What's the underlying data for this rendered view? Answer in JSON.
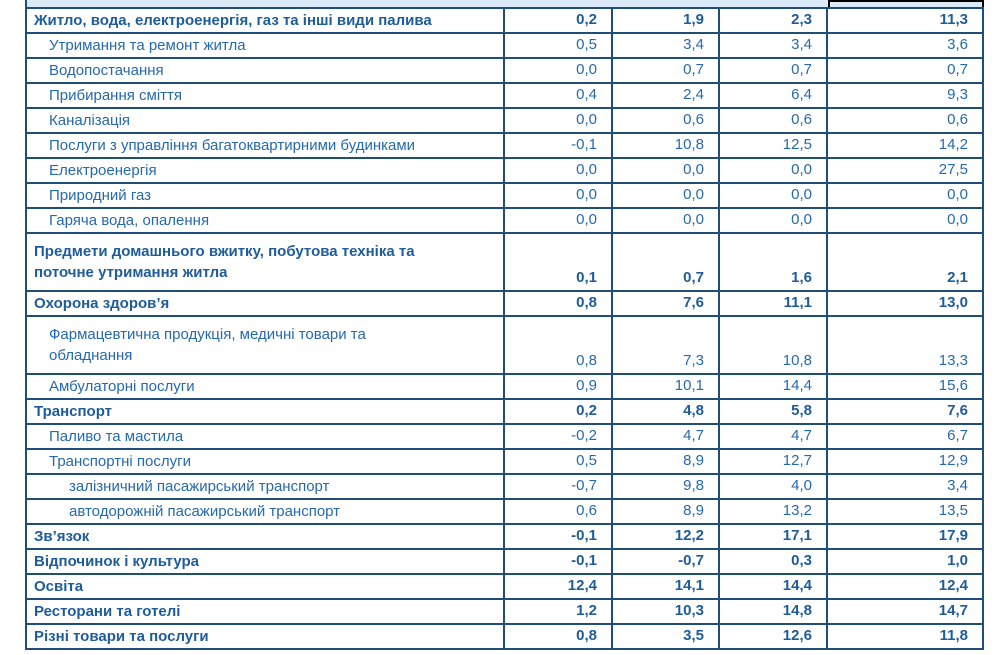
{
  "colors": {
    "border": "#1F4E79",
    "text": "#2569AE",
    "text_bold": "#1E5C9A",
    "header_fill": "#DCE9F6",
    "header_outline": "#000000",
    "background": "#FFFFFF"
  },
  "table": {
    "description": "Statistical table of price change indicators by category (values use comma decimals), header row cut off at top, last value column header outlined in black",
    "num_value_columns": 4,
    "rows": [
      {
        "level": 0,
        "bold": true,
        "lines": [
          "Житло, вода, електроенергія, газ та інші види палива"
        ],
        "values": [
          "0,2",
          "1,9",
          "2,3",
          "11,3"
        ]
      },
      {
        "level": 1,
        "bold": false,
        "lines": [
          "Утримання та ремонт житла"
        ],
        "values": [
          "0,5",
          "3,4",
          "3,4",
          "3,6"
        ]
      },
      {
        "level": 1,
        "bold": false,
        "lines": [
          "Водопостачання"
        ],
        "values": [
          "0,0",
          "0,7",
          "0,7",
          "0,7"
        ]
      },
      {
        "level": 1,
        "bold": false,
        "lines": [
          "Прибирання сміття"
        ],
        "values": [
          "0,4",
          "2,4",
          "6,4",
          "9,3"
        ]
      },
      {
        "level": 1,
        "bold": false,
        "lines": [
          "Каналізація"
        ],
        "values": [
          "0,0",
          "0,6",
          "0,6",
          "0,6"
        ]
      },
      {
        "level": 1,
        "bold": false,
        "lines": [
          "Послуги з управління багатоквартирними будинками"
        ],
        "values": [
          "-0,1",
          "10,8",
          "12,5",
          "14,2"
        ]
      },
      {
        "level": 1,
        "bold": false,
        "lines": [
          "Електроенергія"
        ],
        "values": [
          "0,0",
          "0,0",
          "0,0",
          "27,5"
        ]
      },
      {
        "level": 1,
        "bold": false,
        "lines": [
          "Природний газ"
        ],
        "values": [
          "0,0",
          "0,0",
          "0,0",
          "0,0"
        ]
      },
      {
        "level": 1,
        "bold": false,
        "lines": [
          "Гаряча вода, опалення"
        ],
        "values": [
          "0,0",
          "0,0",
          "0,0",
          "0,0"
        ]
      },
      {
        "level": 0,
        "bold": true,
        "lines": [
          "Предмети домашнього вжитку, побутова техніка та",
          "поточне утримання житла"
        ],
        "values": [
          "0,1",
          "0,7",
          "1,6",
          "2,1"
        ]
      },
      {
        "level": 0,
        "bold": true,
        "lines": [
          "Охорона здоров’я"
        ],
        "values": [
          "0,8",
          "7,6",
          "11,1",
          "13,0"
        ]
      },
      {
        "level": 1,
        "bold": false,
        "lines": [
          "Фармацевтична продукція, медичні товари та",
          "обладнання"
        ],
        "values": [
          "0,8",
          "7,3",
          "10,8",
          "13,3"
        ]
      },
      {
        "level": 1,
        "bold": false,
        "lines": [
          "Амбулаторні послуги"
        ],
        "values": [
          "0,9",
          "10,1",
          "14,4",
          "15,6"
        ]
      },
      {
        "level": 0,
        "bold": true,
        "lines": [
          "Транспорт"
        ],
        "values": [
          "0,2",
          "4,8",
          "5,8",
          "7,6"
        ]
      },
      {
        "level": 1,
        "bold": false,
        "lines": [
          "Паливо та мастила"
        ],
        "values": [
          "-0,2",
          "4,7",
          "4,7",
          "6,7"
        ]
      },
      {
        "level": 1,
        "bold": false,
        "lines": [
          "Транспортні послуги"
        ],
        "values": [
          "0,5",
          "8,9",
          "12,7",
          "12,9"
        ]
      },
      {
        "level": 2,
        "bold": false,
        "lines": [
          "залізничний пасажирський транспорт"
        ],
        "values": [
          "-0,7",
          "9,8",
          "4,0",
          "3,4"
        ]
      },
      {
        "level": 2,
        "bold": false,
        "lines": [
          "автодорожній пасажирський транспорт"
        ],
        "values": [
          "0,6",
          "8,9",
          "13,2",
          "13,5"
        ]
      },
      {
        "level": 0,
        "bold": true,
        "lines": [
          "Зв’язок"
        ],
        "values": [
          "-0,1",
          "12,2",
          "17,1",
          "17,9"
        ]
      },
      {
        "level": 0,
        "bold": true,
        "lines": [
          "Відпочинок і культура"
        ],
        "values": [
          "-0,1",
          "-0,7",
          "0,3",
          "1,0"
        ]
      },
      {
        "level": 0,
        "bold": true,
        "lines": [
          "Освіта"
        ],
        "values": [
          "12,4",
          "14,1",
          "14,4",
          "12,4"
        ]
      },
      {
        "level": 0,
        "bold": true,
        "lines": [
          "Ресторани та готелі"
        ],
        "values": [
          "1,2",
          "10,3",
          "14,8",
          "14,7"
        ]
      },
      {
        "level": 0,
        "bold": true,
        "lines": [
          "Різні товари та послуги"
        ],
        "values": [
          "0,8",
          "3,5",
          "12,6",
          "11,8"
        ]
      }
    ]
  }
}
